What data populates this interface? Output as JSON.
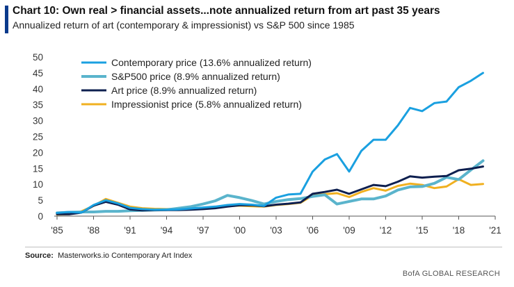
{
  "header": {
    "title": "Chart 10: Own real > financial assets...note annualized return from art past 35 years",
    "subtitle": "Annualized return of art (contemporary & impressionist) vs S&P 500 since 1985"
  },
  "footer": {
    "source_label": "Source:",
    "source_text": "Masterworks.io Contemporary Art Index",
    "brand": "BofA GLOBAL RESEARCH"
  },
  "chart_data": {
    "type": "line",
    "title": "",
    "xlabel": "",
    "ylabel": "",
    "xlim": [
      1985,
      2021
    ],
    "ylim": [
      0,
      50
    ],
    "yticks": [
      0,
      5,
      10,
      15,
      20,
      25,
      30,
      35,
      40,
      45,
      50
    ],
    "xticks": [
      1985,
      1988,
      1991,
      1994,
      1997,
      2000,
      2003,
      2006,
      2009,
      2012,
      2015,
      2018,
      2021
    ],
    "xtick_labels": [
      "'85",
      "'88",
      "'91",
      "'94",
      "'97",
      "'00",
      "'03",
      "'06",
      "'09",
      "'12",
      "'15",
      "'18",
      "'21"
    ],
    "grid": false,
    "legend_position": "top-left",
    "x": [
      1985,
      1986,
      1987,
      1988,
      1989,
      1990,
      1991,
      1992,
      1993,
      1994,
      1995,
      1996,
      1997,
      1998,
      1999,
      2000,
      2001,
      2002,
      2003,
      2004,
      2005,
      2006,
      2007,
      2008,
      2009,
      2010,
      2011,
      2012,
      2013,
      2014,
      2015,
      2016,
      2017,
      2018,
      2019,
      2020
    ],
    "series": [
      {
        "name": "Contemporary price (13.6% annualized return)",
        "color": "#1aa0e0",
        "width": 3,
        "values": [
          1.0,
          1.3,
          1.1,
          3.5,
          5.0,
          4.0,
          2.6,
          2.2,
          2.0,
          2.0,
          2.1,
          2.4,
          2.7,
          3.0,
          3.5,
          3.8,
          3.6,
          3.2,
          5.8,
          6.8,
          7.0,
          14.0,
          17.8,
          19.5,
          14.0,
          20.5,
          24.0,
          24.0,
          28.5,
          34.0,
          33.0,
          35.5,
          36.0,
          40.5,
          42.5,
          45.0
        ]
      },
      {
        "name": "S&P500 price (8.9% annualized return)",
        "color": "#5ab4cc",
        "width": 4,
        "values": [
          1.0,
          1.2,
          1.3,
          1.3,
          1.5,
          1.5,
          1.7,
          1.8,
          1.9,
          2.0,
          2.5,
          3.0,
          3.8,
          4.8,
          6.5,
          5.8,
          4.9,
          3.8,
          4.6,
          5.2,
          5.5,
          6.2,
          6.7,
          3.8,
          4.6,
          5.4,
          5.4,
          6.3,
          8.2,
          9.2,
          9.3,
          10.3,
          12.2,
          11.5,
          14.5,
          17.4
        ]
      },
      {
        "name": "Art price (8.9% annualized return)",
        "color": "#0d1f4f",
        "width": 3,
        "values": [
          0.6,
          0.6,
          1.1,
          3.3,
          4.5,
          3.6,
          2.1,
          1.8,
          1.9,
          1.9,
          1.9,
          2.0,
          2.2,
          2.5,
          3.0,
          3.4,
          3.4,
          3.1,
          3.6,
          3.9,
          4.3,
          7.0,
          7.6,
          8.3,
          7.0,
          8.4,
          9.8,
          9.4,
          10.8,
          12.5,
          12.1,
          12.4,
          12.6,
          14.4,
          14.9,
          15.6
        ]
      },
      {
        "name": "Impressionist price (5.8% annualized return)",
        "color": "#f0b020",
        "width": 3,
        "values": [
          0.5,
          0.6,
          1.5,
          3.2,
          5.4,
          4.2,
          3.0,
          2.5,
          2.3,
          2.2,
          2.3,
          2.4,
          2.6,
          2.8,
          3.1,
          3.3,
          3.1,
          3.0,
          3.5,
          3.8,
          4.2,
          6.5,
          6.9,
          7.2,
          6.0,
          7.6,
          8.8,
          8.0,
          9.5,
          10.2,
          9.8,
          8.8,
          9.3,
          11.6,
          9.8,
          10.1
        ]
      }
    ]
  }
}
